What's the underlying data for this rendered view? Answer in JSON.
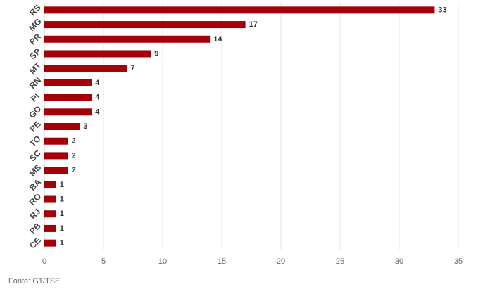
{
  "chart_data": {
    "type": "bar",
    "orientation": "horizontal",
    "categories": [
      "RS",
      "MG",
      "PR",
      "SP",
      "MT",
      "RN",
      "PI",
      "GO",
      "PE",
      "TO",
      "SC",
      "MS",
      "BA",
      "RO",
      "RJ",
      "PB",
      "CE"
    ],
    "values": [
      33,
      17,
      14,
      9,
      7,
      4,
      4,
      4,
      3,
      2,
      2,
      2,
      1,
      1,
      1,
      1,
      1
    ],
    "xticks": [
      "0",
      "5",
      "10",
      "15",
      "20",
      "25",
      "30",
      "35"
    ],
    "xlim": [
      0,
      35
    ],
    "grid": true,
    "bar_color": "#a30008",
    "source": "Fonte: G1/TSE"
  }
}
